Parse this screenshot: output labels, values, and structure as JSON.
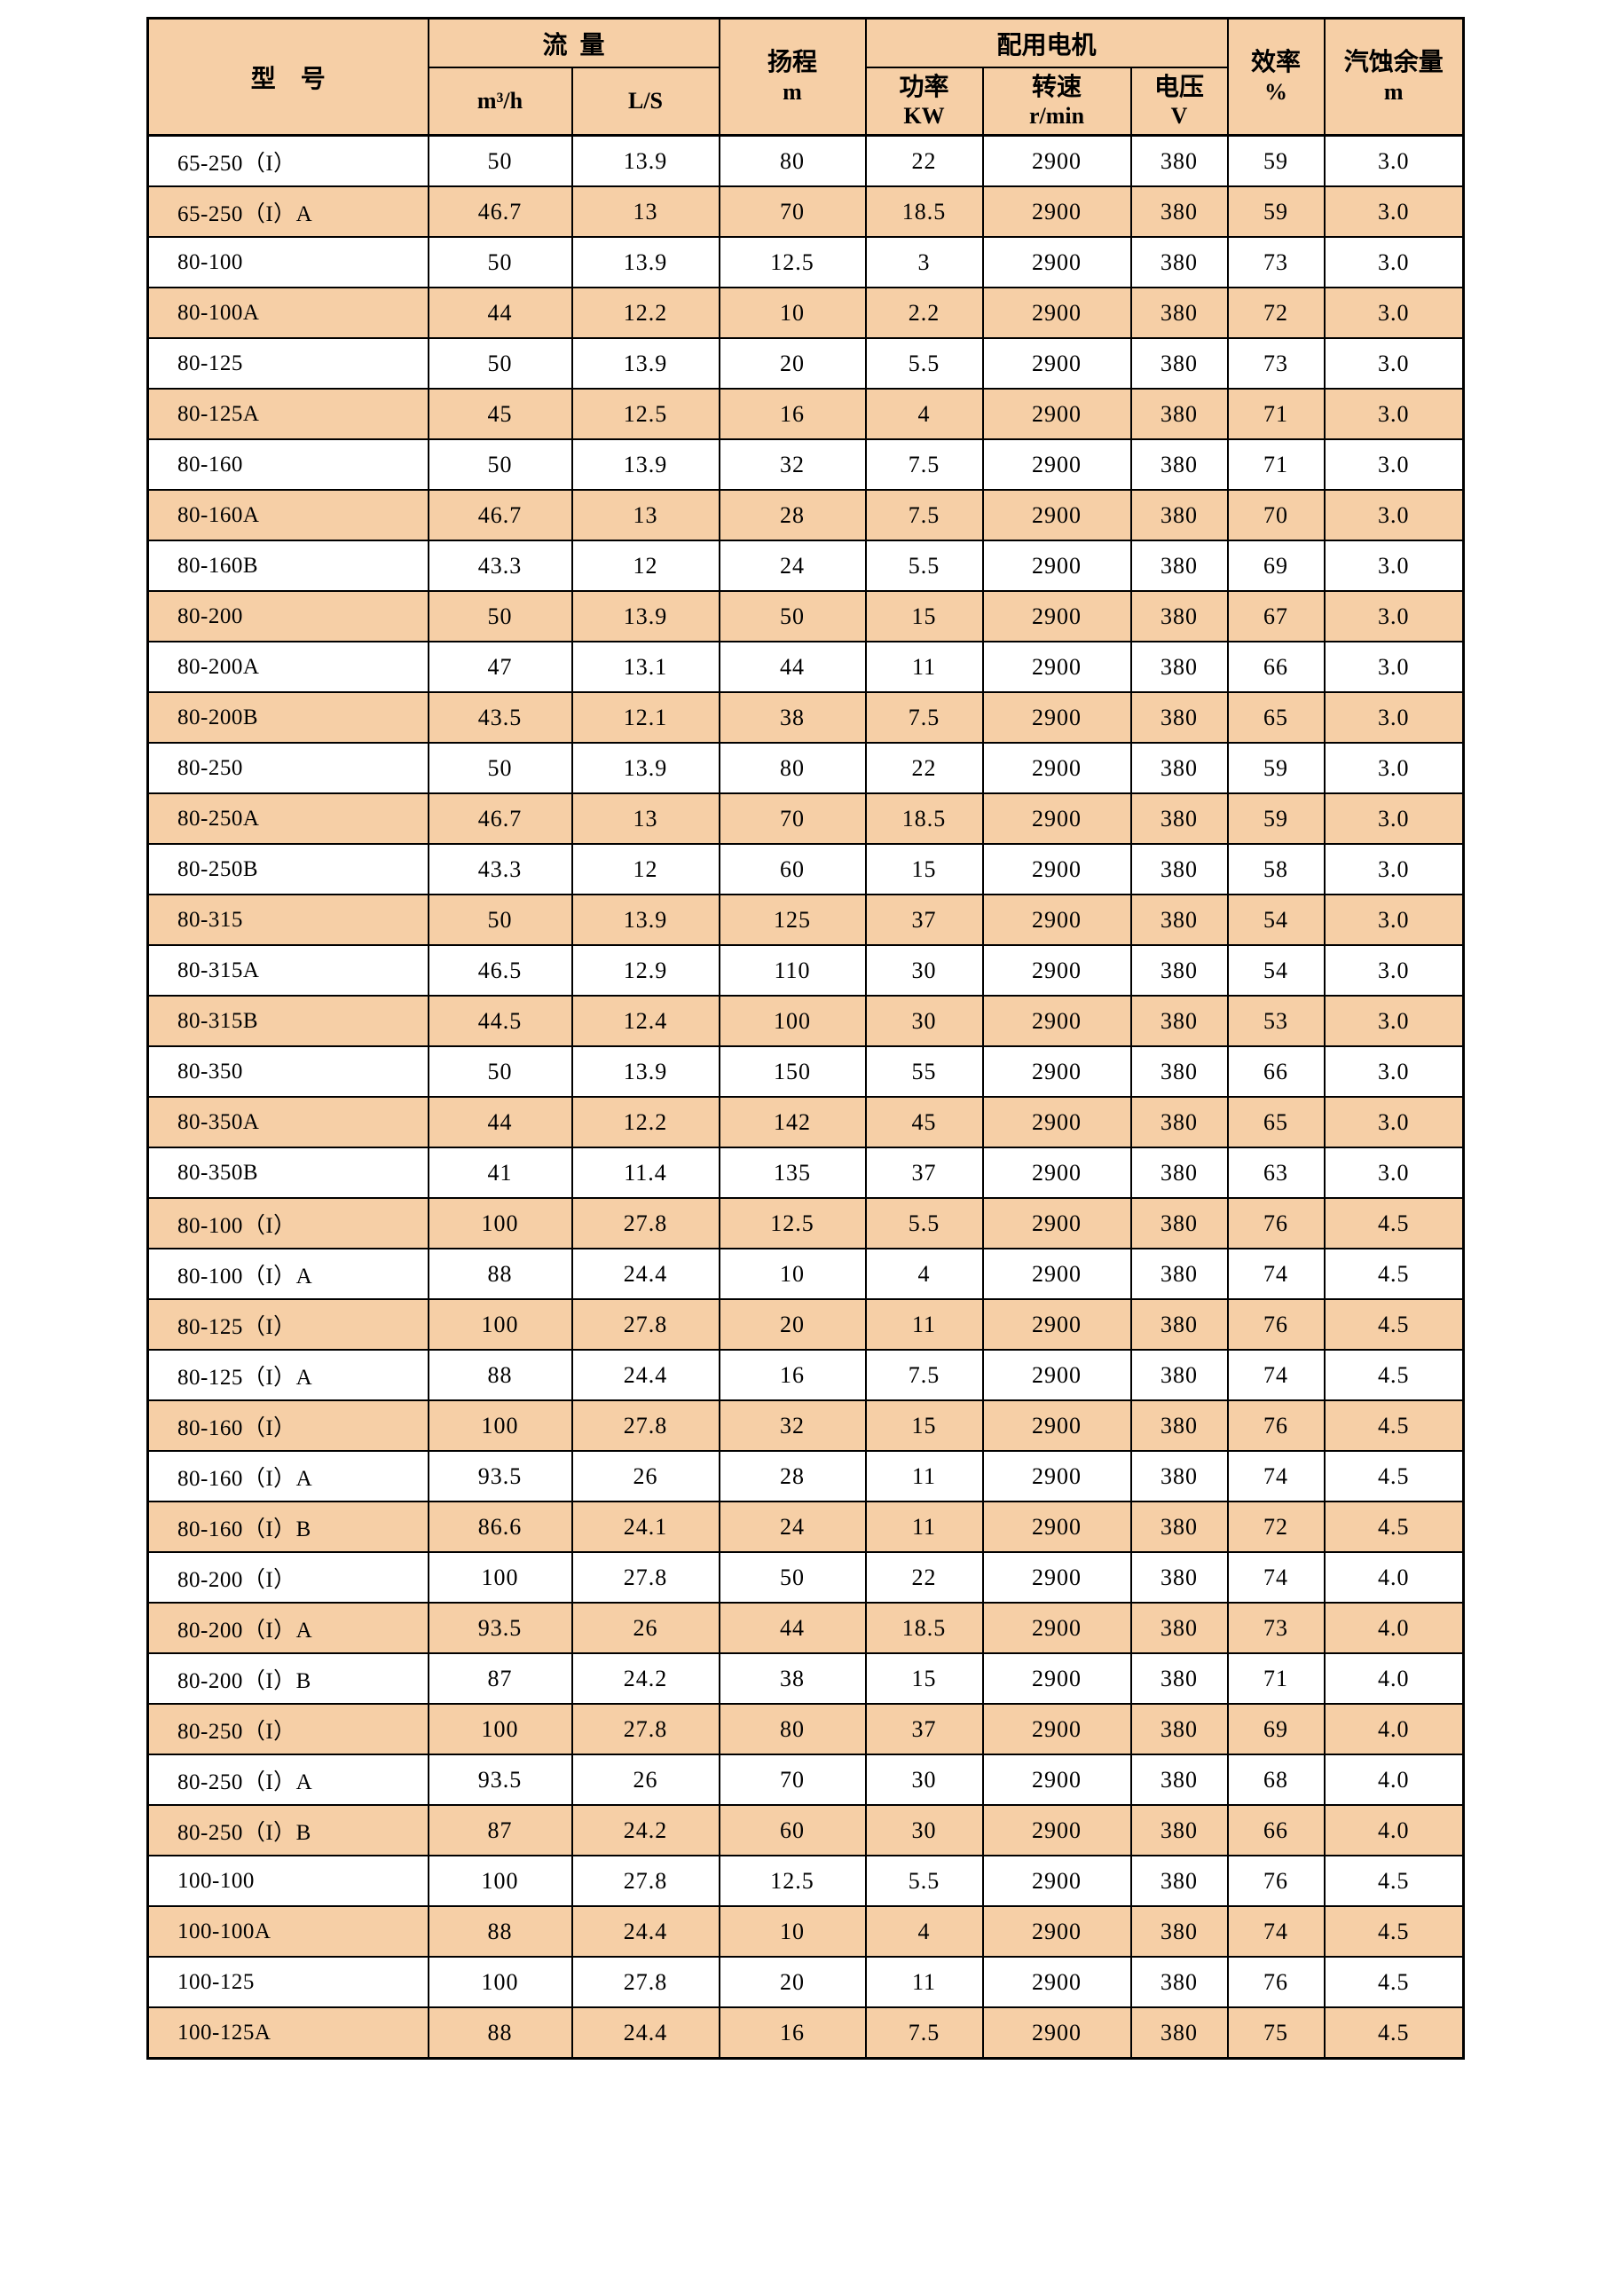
{
  "colors": {
    "row_alt_background": "#F6CFA6",
    "row_base_background": "#FFFFFF",
    "border": "#000000",
    "text": "#000000"
  },
  "table": {
    "header": {
      "model": "型    号",
      "flow": "流  量",
      "flow_unit_m3h": "m³/h",
      "flow_unit_ls": "L/S",
      "head": {
        "l1": "扬程",
        "l2": "m"
      },
      "motor": "配用电机",
      "power": {
        "l1": "功率",
        "l2": "KW"
      },
      "speed": {
        "l1": "转速",
        "l2": "r/min"
      },
      "voltage": {
        "l1": "电压",
        "l2": "V"
      },
      "efficiency": {
        "l1": "效率",
        "l2": "%"
      },
      "npsh": {
        "l1": "汽蚀余量",
        "l2": "m"
      }
    },
    "columns": [
      "型号",
      "流量 m³/h",
      "流量 L/S",
      "扬程 m",
      "功率 KW",
      "转速 r/min",
      "电压 V",
      "效率 %",
      "汽蚀余量 m"
    ],
    "rows": [
      [
        "65-250（I）",
        "50",
        "13.9",
        "80",
        "22",
        "2900",
        "380",
        "59",
        "3.0"
      ],
      [
        "65-250（I）A",
        "46.7",
        "13",
        "70",
        "18.5",
        "2900",
        "380",
        "59",
        "3.0"
      ],
      [
        "80-100",
        "50",
        "13.9",
        "12.5",
        "3",
        "2900",
        "380",
        "73",
        "3.0"
      ],
      [
        "80-100A",
        "44",
        "12.2",
        "10",
        "2.2",
        "2900",
        "380",
        "72",
        "3.0"
      ],
      [
        "80-125",
        "50",
        "13.9",
        "20",
        "5.5",
        "2900",
        "380",
        "73",
        "3.0"
      ],
      [
        "80-125A",
        "45",
        "12.5",
        "16",
        "4",
        "2900",
        "380",
        "71",
        "3.0"
      ],
      [
        "80-160",
        "50",
        "13.9",
        "32",
        "7.5",
        "2900",
        "380",
        "71",
        "3.0"
      ],
      [
        "80-160A",
        "46.7",
        "13",
        "28",
        "7.5",
        "2900",
        "380",
        "70",
        "3.0"
      ],
      [
        "80-160B",
        "43.3",
        "12",
        "24",
        "5.5",
        "2900",
        "380",
        "69",
        "3.0"
      ],
      [
        "80-200",
        "50",
        "13.9",
        "50",
        "15",
        "2900",
        "380",
        "67",
        "3.0"
      ],
      [
        "80-200A",
        "47",
        "13.1",
        "44",
        "11",
        "2900",
        "380",
        "66",
        "3.0"
      ],
      [
        "80-200B",
        "43.5",
        "12.1",
        "38",
        "7.5",
        "2900",
        "380",
        "65",
        "3.0"
      ],
      [
        "80-250",
        "50",
        "13.9",
        "80",
        "22",
        "2900",
        "380",
        "59",
        "3.0"
      ],
      [
        "80-250A",
        "46.7",
        "13",
        "70",
        "18.5",
        "2900",
        "380",
        "59",
        "3.0"
      ],
      [
        "80-250B",
        "43.3",
        "12",
        "60",
        "15",
        "2900",
        "380",
        "58",
        "3.0"
      ],
      [
        "80-315",
        "50",
        "13.9",
        "125",
        "37",
        "2900",
        "380",
        "54",
        "3.0"
      ],
      [
        "80-315A",
        "46.5",
        "12.9",
        "110",
        "30",
        "2900",
        "380",
        "54",
        "3.0"
      ],
      [
        "80-315B",
        "44.5",
        "12.4",
        "100",
        "30",
        "2900",
        "380",
        "53",
        "3.0"
      ],
      [
        "80-350",
        "50",
        "13.9",
        "150",
        "55",
        "2900",
        "380",
        "66",
        "3.0"
      ],
      [
        "80-350A",
        "44",
        "12.2",
        "142",
        "45",
        "2900",
        "380",
        "65",
        "3.0"
      ],
      [
        "80-350B",
        "41",
        "11.4",
        "135",
        "37",
        "2900",
        "380",
        "63",
        "3.0"
      ],
      [
        "80-100（I）",
        "100",
        "27.8",
        "12.5",
        "5.5",
        "2900",
        "380",
        "76",
        "4.5"
      ],
      [
        "80-100（I）A",
        "88",
        "24.4",
        "10",
        "4",
        "2900",
        "380",
        "74",
        "4.5"
      ],
      [
        "80-125（I）",
        "100",
        "27.8",
        "20",
        "11",
        "2900",
        "380",
        "76",
        "4.5"
      ],
      [
        "80-125（I）A",
        "88",
        "24.4",
        "16",
        "7.5",
        "2900",
        "380",
        "74",
        "4.5"
      ],
      [
        "80-160（I）",
        "100",
        "27.8",
        "32",
        "15",
        "2900",
        "380",
        "76",
        "4.5"
      ],
      [
        "80-160（I）A",
        "93.5",
        "26",
        "28",
        "11",
        "2900",
        "380",
        "74",
        "4.5"
      ],
      [
        "80-160（I）B",
        "86.6",
        "24.1",
        "24",
        "11",
        "2900",
        "380",
        "72",
        "4.5"
      ],
      [
        "80-200（I）",
        "100",
        "27.8",
        "50",
        "22",
        "2900",
        "380",
        "74",
        "4.0"
      ],
      [
        "80-200（I）A",
        "93.5",
        "26",
        "44",
        "18.5",
        "2900",
        "380",
        "73",
        "4.0"
      ],
      [
        "80-200（I）B",
        "87",
        "24.2",
        "38",
        "15",
        "2900",
        "380",
        "71",
        "4.0"
      ],
      [
        "80-250（I）",
        "100",
        "27.8",
        "80",
        "37",
        "2900",
        "380",
        "69",
        "4.0"
      ],
      [
        "80-250（I）A",
        "93.5",
        "26",
        "70",
        "30",
        "2900",
        "380",
        "68",
        "4.0"
      ],
      [
        "80-250（I）B",
        "87",
        "24.2",
        "60",
        "30",
        "2900",
        "380",
        "66",
        "4.0"
      ],
      [
        "100-100",
        "100",
        "27.8",
        "12.5",
        "5.5",
        "2900",
        "380",
        "76",
        "4.5"
      ],
      [
        "100-100A",
        "88",
        "24.4",
        "10",
        "4",
        "2900",
        "380",
        "74",
        "4.5"
      ],
      [
        "100-125",
        "100",
        "27.8",
        "20",
        "11",
        "2900",
        "380",
        "76",
        "4.5"
      ],
      [
        "100-125A",
        "88",
        "24.4",
        "16",
        "7.5",
        "2900",
        "380",
        "75",
        "4.5"
      ]
    ]
  }
}
